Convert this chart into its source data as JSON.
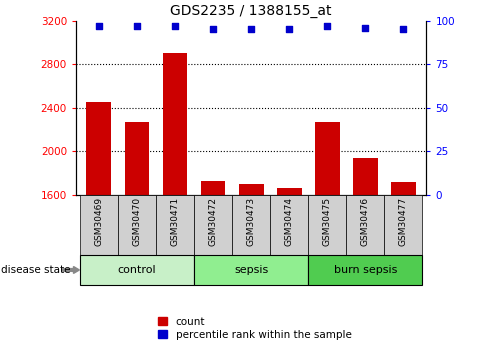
{
  "title": "GDS2235 / 1388155_at",
  "samples": [
    "GSM30469",
    "GSM30470",
    "GSM30471",
    "GSM30472",
    "GSM30473",
    "GSM30474",
    "GSM30475",
    "GSM30476",
    "GSM30477"
  ],
  "counts": [
    2450,
    2270,
    2900,
    1730,
    1700,
    1665,
    2270,
    1940,
    1715
  ],
  "percentile_ranks": [
    97,
    97,
    97,
    95,
    95,
    95,
    97,
    96,
    95
  ],
  "groups": [
    {
      "label": "control",
      "indices": [
        0,
        1,
        2
      ],
      "color": "#c8f0c8"
    },
    {
      "label": "sepsis",
      "indices": [
        3,
        4,
        5
      ],
      "color": "#90ee90"
    },
    {
      "label": "burn sepsis",
      "indices": [
        6,
        7,
        8
      ],
      "color": "#50cc50"
    }
  ],
  "ylim_left": [
    1600,
    3200
  ],
  "ylim_right": [
    0,
    100
  ],
  "yticks_left": [
    1600,
    2000,
    2400,
    2800,
    3200
  ],
  "yticks_right": [
    0,
    25,
    50,
    75,
    100
  ],
  "bar_color": "#cc0000",
  "dot_color": "#0000cc",
  "bar_width": 0.65,
  "tick_bg_color": "#d0d0d0",
  "legend_items": [
    "count",
    "percentile rank within the sample"
  ],
  "disease_state_label": "disease state"
}
